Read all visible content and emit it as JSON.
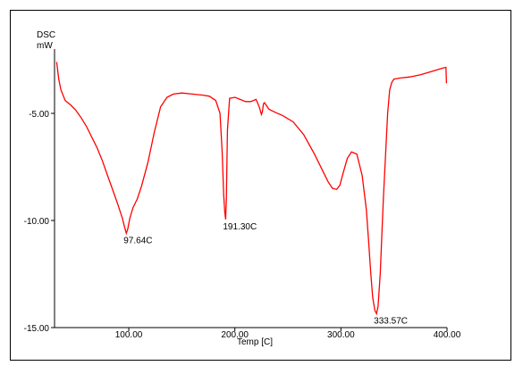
{
  "chart_data": {
    "type": "line",
    "ylabel_top": "DSC",
    "ylabel_unit": "mW",
    "xlabel": "Temp [C]",
    "xlim": [
      30,
      400
    ],
    "ylim": [
      -15,
      -2
    ],
    "x_ticks": [
      100,
      200,
      300,
      400
    ],
    "x_tick_labels": [
      "100.00",
      "200.00",
      "300.00",
      "400.00"
    ],
    "y_ticks": [
      -5,
      -10,
      -15
    ],
    "y_tick_labels": [
      "-5.00",
      "-10.00",
      "-15.00"
    ],
    "grid": false,
    "line_color": "#ff0000",
    "series": [
      {
        "x": [
          32,
          34,
          36,
          40,
          45,
          50,
          55,
          60,
          65,
          70,
          75,
          80,
          85,
          90,
          94,
          96,
          97.64,
          99,
          101,
          104,
          108,
          112,
          118,
          124,
          130,
          136,
          142,
          150,
          160,
          170,
          176,
          182,
          186,
          188,
          189.5,
          190.5,
          191.3,
          192,
          193,
          195,
          200,
          205,
          210,
          215,
          220,
          223,
          225,
          226,
          227,
          228,
          230,
          232,
          234,
          238,
          245,
          255,
          265,
          275,
          282,
          288,
          292,
          296,
          299,
          302,
          306,
          310,
          315,
          320,
          324,
          326,
          328,
          330,
          332,
          333.57,
          335,
          337,
          340,
          344,
          346,
          348,
          350,
          356,
          365,
          375,
          385,
          395,
          399,
          399.5
        ],
        "y": [
          -2.6,
          -3.4,
          -3.9,
          -4.4,
          -4.6,
          -4.85,
          -5.2,
          -5.6,
          -6.1,
          -6.6,
          -7.2,
          -7.9,
          -8.6,
          -9.3,
          -9.9,
          -10.3,
          -10.6,
          -10.4,
          -9.9,
          -9.4,
          -9.0,
          -8.4,
          -7.3,
          -5.9,
          -4.7,
          -4.25,
          -4.1,
          -4.05,
          -4.1,
          -4.15,
          -4.2,
          -4.4,
          -5.0,
          -6.8,
          -8.8,
          -9.6,
          -9.95,
          -9.0,
          -5.8,
          -4.3,
          -4.25,
          -4.35,
          -4.45,
          -4.45,
          -4.35,
          -4.7,
          -5.05,
          -4.9,
          -4.55,
          -4.5,
          -4.65,
          -4.8,
          -4.85,
          -4.95,
          -5.1,
          -5.4,
          -6.0,
          -6.9,
          -7.6,
          -8.2,
          -8.5,
          -8.55,
          -8.35,
          -7.8,
          -7.1,
          -6.8,
          -6.9,
          -7.9,
          -9.5,
          -10.9,
          -12.4,
          -13.6,
          -14.2,
          -14.35,
          -14.0,
          -12.5,
          -9.0,
          -5.0,
          -3.9,
          -3.55,
          -3.4,
          -3.35,
          -3.3,
          -3.2,
          -3.05,
          -2.9,
          -2.85,
          -3.6
        ]
      }
    ],
    "annotations": [
      {
        "text": "97.64C",
        "x": 97.64,
        "y": -10.6
      },
      {
        "text": "191.30C",
        "x": 191.3,
        "y": -9.95
      },
      {
        "text": "333.57C",
        "x": 333.57,
        "y": -14.35
      }
    ]
  }
}
